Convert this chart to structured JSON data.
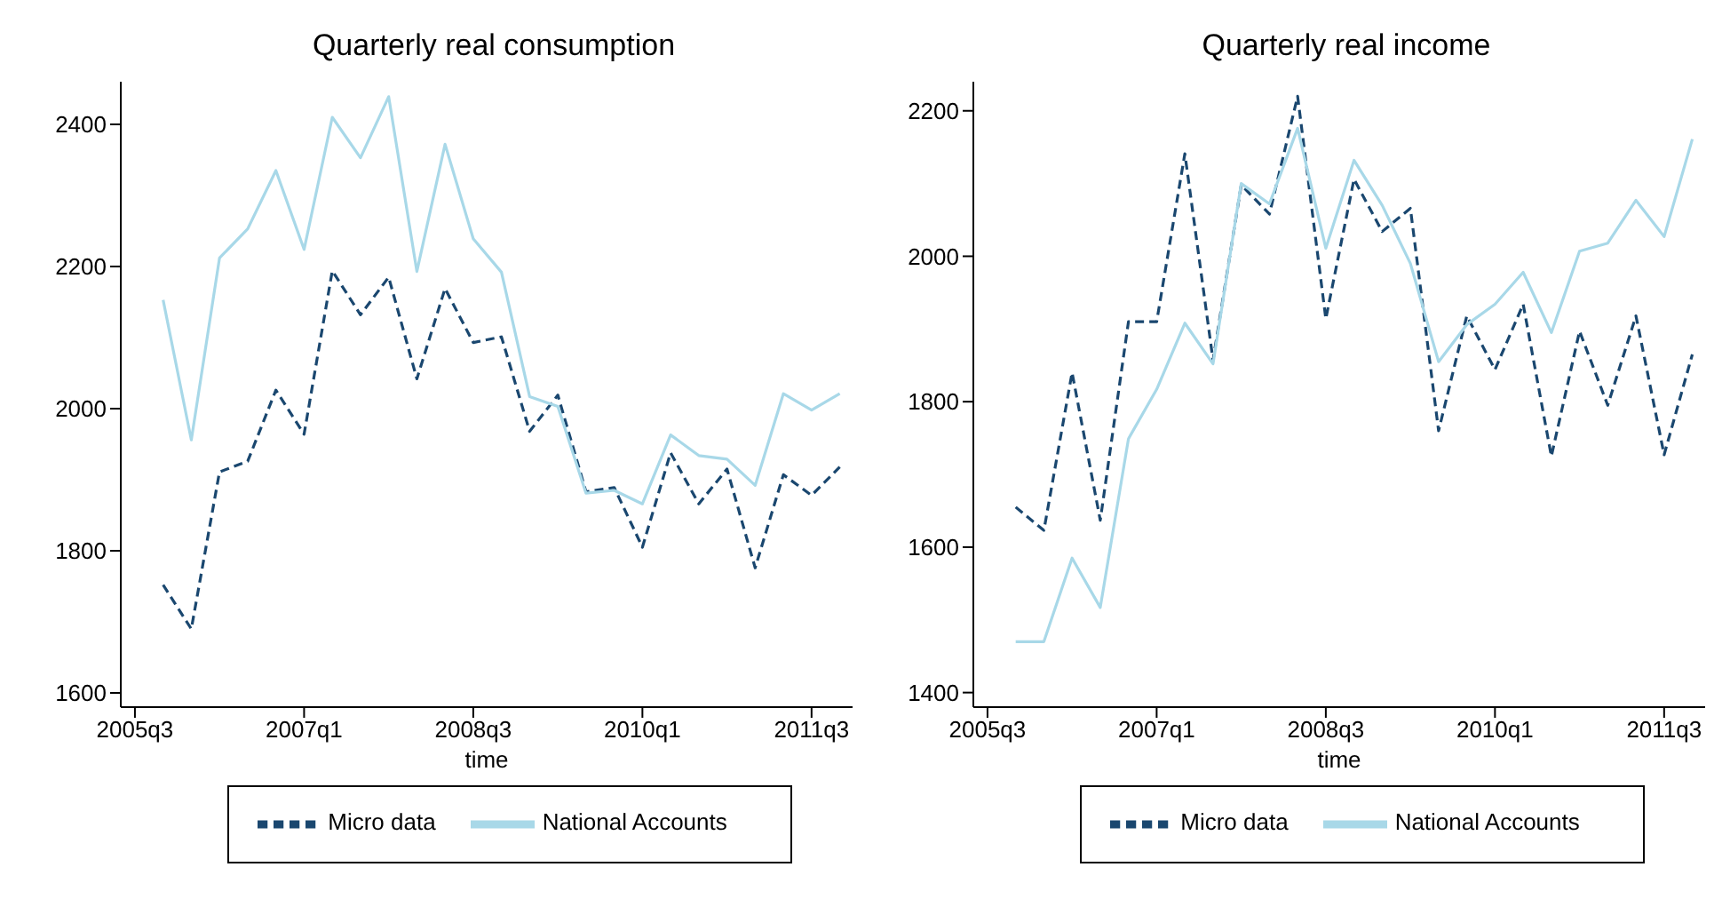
{
  "chart_data": [
    {
      "type": "line",
      "title": "Quarterly real consumption",
      "xlabel": "time",
      "x": [
        "2005-10",
        "2006-01",
        "2006-04",
        "2006-07",
        "2006-10",
        "2007-01",
        "2007-04",
        "2007-07",
        "2007-10",
        "2008-01",
        "2008-04",
        "2008-07",
        "2008-10",
        "2009-01",
        "2009-04",
        "2009-07",
        "2009-10",
        "2010-01",
        "2010-04",
        "2010-07",
        "2010-10",
        "2011-01",
        "2011-04",
        "2011-07",
        "2011-10"
      ],
      "xlim": [
        "2005-05-16",
        "2011-11-12"
      ],
      "xticks": [
        {
          "value": "2005-07",
          "label": "2005q3"
        },
        {
          "value": "2007-01",
          "label": "2007q1"
        },
        {
          "value": "2008-07",
          "label": "2008q3"
        },
        {
          "value": "2010-01",
          "label": "2010q1"
        },
        {
          "value": "2011-07",
          "label": "2011q3"
        }
      ],
      "ylim": [
        1580,
        2460
      ],
      "yticks": [
        1600,
        1800,
        2000,
        2200,
        2400
      ],
      "series": [
        {
          "name": "Micro data",
          "color": "#1a476f",
          "line_style": "dashed",
          "values": [
            1752,
            1690,
            1911,
            1926,
            2026,
            1964,
            2194,
            2132,
            2185,
            2042,
            2169,
            2093,
            2101,
            1968,
            2019,
            1883,
            1889,
            1805,
            1938,
            1866,
            1915,
            1776,
            1907,
            1878,
            1918
          ]
        },
        {
          "name": "National Accounts",
          "color": "#a8d8e8",
          "line_style": "solid",
          "values": [
            2153,
            1956,
            2212,
            2253,
            2335,
            2224,
            2410,
            2353,
            2439,
            2193,
            2372,
            2239,
            2192,
            2017,
            2003,
            1881,
            1885,
            1866,
            1963,
            1934,
            1929,
            1892,
            2021,
            1998,
            2021
          ]
        }
      ],
      "legend": "bottom",
      "grid": false,
      "marker": "none"
    },
    {
      "type": "line",
      "title": "Quarterly real income",
      "xlabel": "time",
      "x": [
        "2005-10",
        "2006-01",
        "2006-04",
        "2006-07",
        "2006-10",
        "2007-01",
        "2007-04",
        "2007-07",
        "2007-10",
        "2008-01",
        "2008-04",
        "2008-07",
        "2008-10",
        "2009-01",
        "2009-04",
        "2009-07",
        "2009-10",
        "2010-01",
        "2010-04",
        "2010-07",
        "2010-10",
        "2011-01",
        "2011-04",
        "2011-07",
        "2011-10"
      ],
      "xlim": [
        "2005-05-16",
        "2011-11-12"
      ],
      "xticks": [
        {
          "value": "2005-07",
          "label": "2005q3"
        },
        {
          "value": "2007-01",
          "label": "2007q1"
        },
        {
          "value": "2008-07",
          "label": "2008q3"
        },
        {
          "value": "2010-01",
          "label": "2010q1"
        },
        {
          "value": "2011-07",
          "label": "2011q3"
        }
      ],
      "ylim": [
        1380,
        2240
      ],
      "yticks": [
        1400,
        1600,
        1800,
        2000,
        2200
      ],
      "series": [
        {
          "name": "Micro data",
          "color": "#1a476f",
          "line_style": "dashed",
          "values": [
            1655,
            1623,
            1840,
            1637,
            1910,
            1910,
            2141,
            1857,
            2098,
            2058,
            2220,
            1914,
            2106,
            2034,
            2066,
            1760,
            1918,
            1844,
            1934,
            1725,
            1897,
            1795,
            1918,
            1727,
            1865
          ]
        },
        {
          "name": "National Accounts",
          "color": "#a8d8e8",
          "line_style": "solid",
          "values": [
            1470,
            1470,
            1585,
            1517,
            1749,
            1817,
            1908,
            1852,
            2100,
            2072,
            2176,
            2011,
            2132,
            2070,
            1990,
            1855,
            1906,
            1934,
            1978,
            1895,
            2007,
            2018,
            2077,
            2027,
            2161
          ]
        }
      ],
      "legend": "bottom",
      "grid": false,
      "marker": "none"
    }
  ]
}
